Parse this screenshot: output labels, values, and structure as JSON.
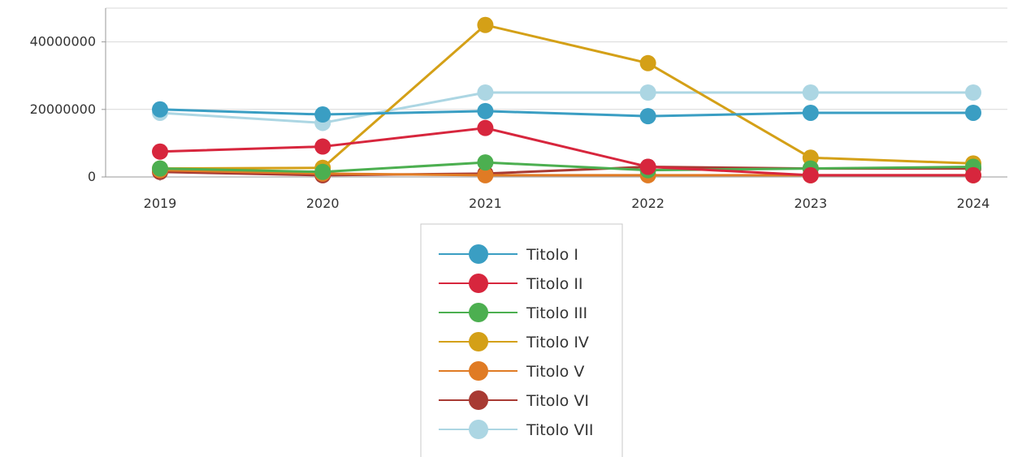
{
  "chart_data": {
    "type": "line",
    "title": "",
    "xlabel": "",
    "ylabel": "",
    "categories": [
      "2019",
      "2020",
      "2021",
      "2022",
      "2023",
      "2024"
    ],
    "y_ticks": [
      "0",
      "20000000",
      "40000000"
    ],
    "ylim": [
      0,
      50000000
    ],
    "grid": true,
    "legend_position": "bottom",
    "series": [
      {
        "name": "Titolo I",
        "color": "#3a9ec3",
        "values": [
          20000000,
          18500000,
          19500000,
          18000000,
          19000000,
          19000000
        ]
      },
      {
        "name": "Titolo II",
        "color": "#d7263d",
        "values": [
          7500000,
          9000000,
          14500000,
          3000000,
          500000,
          500000
        ]
      },
      {
        "name": "Titolo III",
        "color": "#4caf50",
        "values": [
          2500000,
          1500000,
          4300000,
          2000000,
          2500000,
          3000000
        ]
      },
      {
        "name": "Titolo IV",
        "color": "#d4a017",
        "values": [
          2500000,
          2700000,
          45000000,
          33700000,
          5700000,
          4000000
        ]
      },
      {
        "name": "Titolo V",
        "color": "#e07b24",
        "values": [
          2000000,
          1000000,
          500000,
          500000,
          500000,
          500000
        ]
      },
      {
        "name": "Titolo VI",
        "color": "#a83a33",
        "values": [
          1500000,
          500000,
          1000000,
          3000000,
          2500000,
          2500000
        ]
      },
      {
        "name": "Titolo VII",
        "color": "#acd6e3",
        "values": [
          19000000,
          16000000,
          25000000,
          25000000,
          25000000,
          25000000
        ]
      }
    ]
  }
}
